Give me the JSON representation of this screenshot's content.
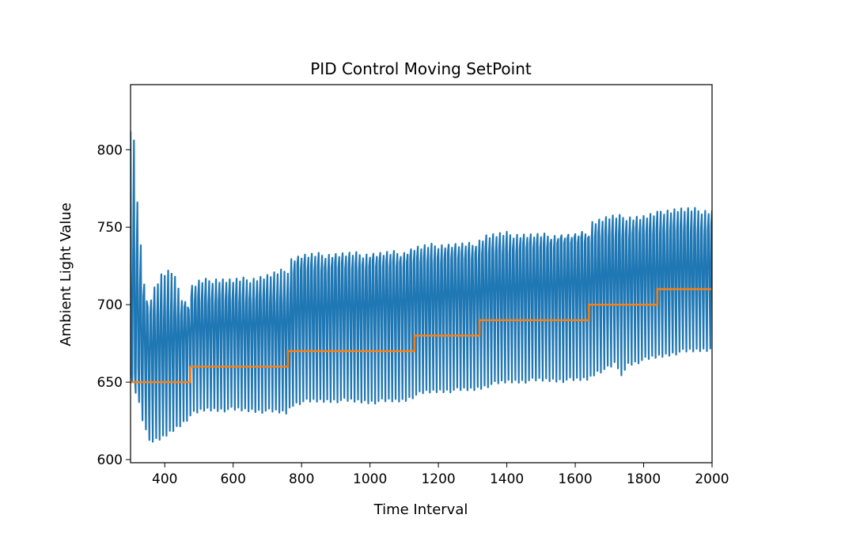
{
  "chart_data": {
    "type": "line",
    "title": "PID Control Moving SetPoint",
    "xlabel": "Time Interval",
    "ylabel": "Ambient Light Value",
    "xlim": [
      300,
      2000
    ],
    "ylim": [
      598,
      842
    ],
    "xticks": [
      400,
      600,
      800,
      1000,
      1200,
      1400,
      1600,
      1800,
      2000
    ],
    "yticks": [
      600,
      650,
      700,
      750,
      800
    ],
    "grid": false,
    "legend": "none",
    "series": [
      {
        "kind": "oscillating-band",
        "color": "#1f77b4",
        "period": 10,
        "upper_envelope": [
          [
            300,
            812
          ],
          [
            310,
            808
          ],
          [
            320,
            770
          ],
          [
            335,
            725
          ],
          [
            350,
            700
          ],
          [
            370,
            712
          ],
          [
            390,
            720
          ],
          [
            410,
            722
          ],
          [
            430,
            722
          ],
          [
            440,
            712
          ],
          [
            450,
            706
          ],
          [
            470,
            700
          ],
          [
            480,
            713
          ],
          [
            500,
            716
          ],
          [
            550,
            718
          ],
          [
            600,
            717
          ],
          [
            650,
            718
          ],
          [
            700,
            720
          ],
          [
            760,
            724
          ],
          [
            770,
            731
          ],
          [
            800,
            733
          ],
          [
            900,
            734
          ],
          [
            1000,
            734
          ],
          [
            1100,
            735
          ],
          [
            1130,
            738
          ],
          [
            1200,
            740
          ],
          [
            1300,
            740
          ],
          [
            1320,
            743
          ],
          [
            1340,
            746
          ],
          [
            1400,
            747
          ],
          [
            1500,
            746
          ],
          [
            1600,
            746
          ],
          [
            1640,
            748
          ],
          [
            1650,
            755
          ],
          [
            1700,
            758
          ],
          [
            1800,
            758
          ],
          [
            1840,
            760
          ],
          [
            1850,
            762
          ],
          [
            1900,
            763
          ],
          [
            2000,
            762
          ]
        ],
        "upper_low_envelope": [
          [
            300,
            745
          ],
          [
            320,
            720
          ],
          [
            340,
            700
          ],
          [
            360,
            690
          ],
          [
            400,
            690
          ],
          [
            450,
            690
          ],
          [
            480,
            700
          ],
          [
            600,
            700
          ],
          [
            760,
            700
          ],
          [
            780,
            720
          ],
          [
            1000,
            722
          ],
          [
            1130,
            725
          ],
          [
            1340,
            730
          ],
          [
            1650,
            740
          ],
          [
            1850,
            745
          ],
          [
            2000,
            745
          ]
        ],
        "lower_envelope": [
          [
            300,
            650
          ],
          [
            320,
            640
          ],
          [
            335,
            625
          ],
          [
            350,
            614
          ],
          [
            365,
            610
          ],
          [
            390,
            612
          ],
          [
            420,
            617
          ],
          [
            450,
            622
          ],
          [
            480,
            628
          ],
          [
            520,
            631
          ],
          [
            600,
            631
          ],
          [
            700,
            630
          ],
          [
            760,
            629
          ],
          [
            770,
            634
          ],
          [
            800,
            636
          ],
          [
            900,
            637
          ],
          [
            1000,
            636
          ],
          [
            1100,
            637
          ],
          [
            1130,
            640
          ],
          [
            1160,
            642
          ],
          [
            1200,
            643
          ],
          [
            1300,
            644
          ],
          [
            1320,
            645
          ],
          [
            1350,
            647
          ],
          [
            1400,
            649
          ],
          [
            1500,
            650
          ],
          [
            1600,
            650
          ],
          [
            1640,
            651
          ],
          [
            1660,
            655
          ],
          [
            1700,
            658
          ],
          [
            1720,
            661
          ],
          [
            1735,
            652
          ],
          [
            1750,
            660
          ],
          [
            1800,
            663
          ],
          [
            1840,
            665
          ],
          [
            1900,
            668
          ],
          [
            2000,
            670
          ]
        ],
        "lower_high_envelope": [
          [
            300,
            660
          ],
          [
            360,
            665
          ],
          [
            480,
            680
          ],
          [
            760,
            685
          ],
          [
            1130,
            695
          ],
          [
            1340,
            700
          ],
          [
            1650,
            705
          ],
          [
            1850,
            710
          ],
          [
            2000,
            712
          ]
        ]
      },
      {
        "kind": "setpoint-step",
        "color": "#ff7f0e",
        "steps": [
          [
            300,
            650
          ],
          [
            475,
            660
          ],
          [
            760,
            670
          ],
          [
            1130,
            680
          ],
          [
            1320,
            690
          ],
          [
            1640,
            700
          ],
          [
            1840,
            710
          ],
          [
            2000,
            710
          ]
        ]
      }
    ]
  }
}
